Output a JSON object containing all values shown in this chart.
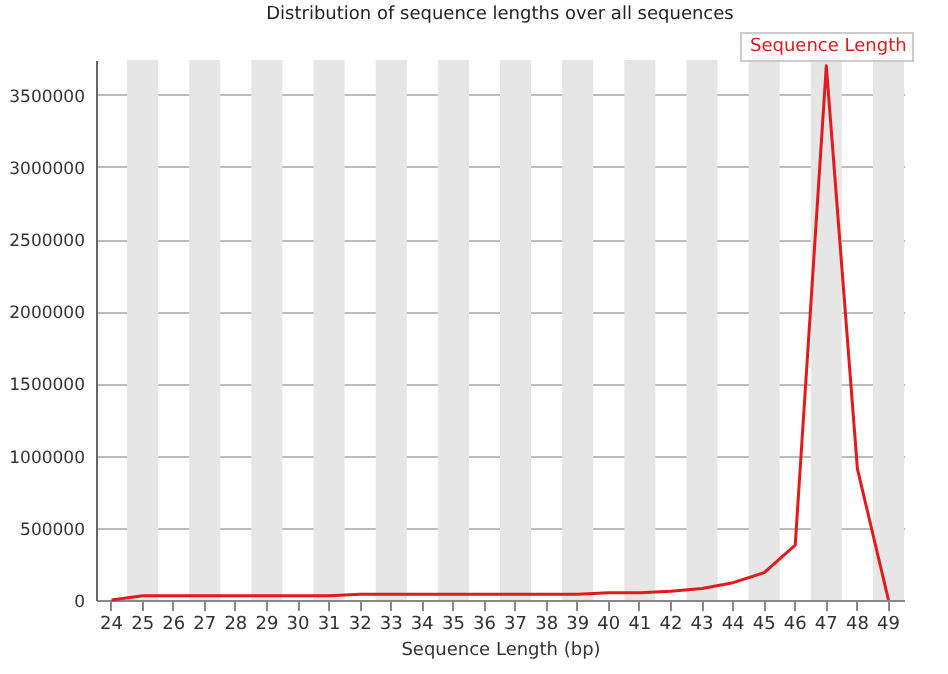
{
  "chart_data": {
    "type": "line",
    "title": "Distribution of sequence lengths over all sequences",
    "xlabel": "Sequence Length (bp)",
    "categories": [
      "24",
      "25",
      "26",
      "27",
      "28",
      "29",
      "30",
      "31",
      "32",
      "33",
      "34",
      "35",
      "36",
      "37",
      "38",
      "39",
      "40",
      "41",
      "42",
      "43",
      "44",
      "45",
      "46",
      "47",
      "48",
      "49"
    ],
    "series": [
      {
        "name": "Sequence Length",
        "color": "#e31a1c",
        "values": [
          0,
          30000,
          30000,
          30000,
          30000,
          30000,
          30000,
          30000,
          40000,
          40000,
          40000,
          40000,
          40000,
          40000,
          40000,
          40000,
          50000,
          50000,
          60000,
          80000,
          120000,
          190000,
          380000,
          3700000,
          910000,
          0
        ]
      }
    ],
    "ylim": [
      0,
      3740000
    ],
    "yticks": [
      0,
      500000,
      1000000,
      1500000,
      2000000,
      2500000,
      3000000,
      3500000
    ],
    "grid": "y",
    "legend": "top right",
    "bands": [
      {
        "axis": "x",
        "from": "25",
        "to": "25",
        "color": "#e6e6e6"
      },
      {
        "axis": "x",
        "from": "27",
        "to": "27",
        "color": "#e6e6e6"
      },
      {
        "axis": "x",
        "from": "29",
        "to": "29",
        "color": "#e6e6e6"
      },
      {
        "axis": "x",
        "from": "31",
        "to": "31",
        "color": "#e6e6e6"
      },
      {
        "axis": "x",
        "from": "33",
        "to": "33",
        "color": "#e6e6e6"
      },
      {
        "axis": "x",
        "from": "35",
        "to": "35",
        "color": "#e6e6e6"
      },
      {
        "axis": "x",
        "from": "37",
        "to": "37",
        "color": "#e6e6e6"
      },
      {
        "axis": "x",
        "from": "39",
        "to": "39",
        "color": "#e6e6e6"
      },
      {
        "axis": "x",
        "from": "41",
        "to": "41",
        "color": "#e6e6e6"
      },
      {
        "axis": "x",
        "from": "43",
        "to": "43",
        "color": "#e6e6e6"
      },
      {
        "axis": "x",
        "from": "45",
        "to": "45",
        "color": "#e6e6e6"
      },
      {
        "axis": "x",
        "from": "47",
        "to": "47",
        "color": "#e6e6e6"
      },
      {
        "axis": "x",
        "from": "49",
        "to": "49",
        "color": "#e6e6e6"
      }
    ]
  }
}
